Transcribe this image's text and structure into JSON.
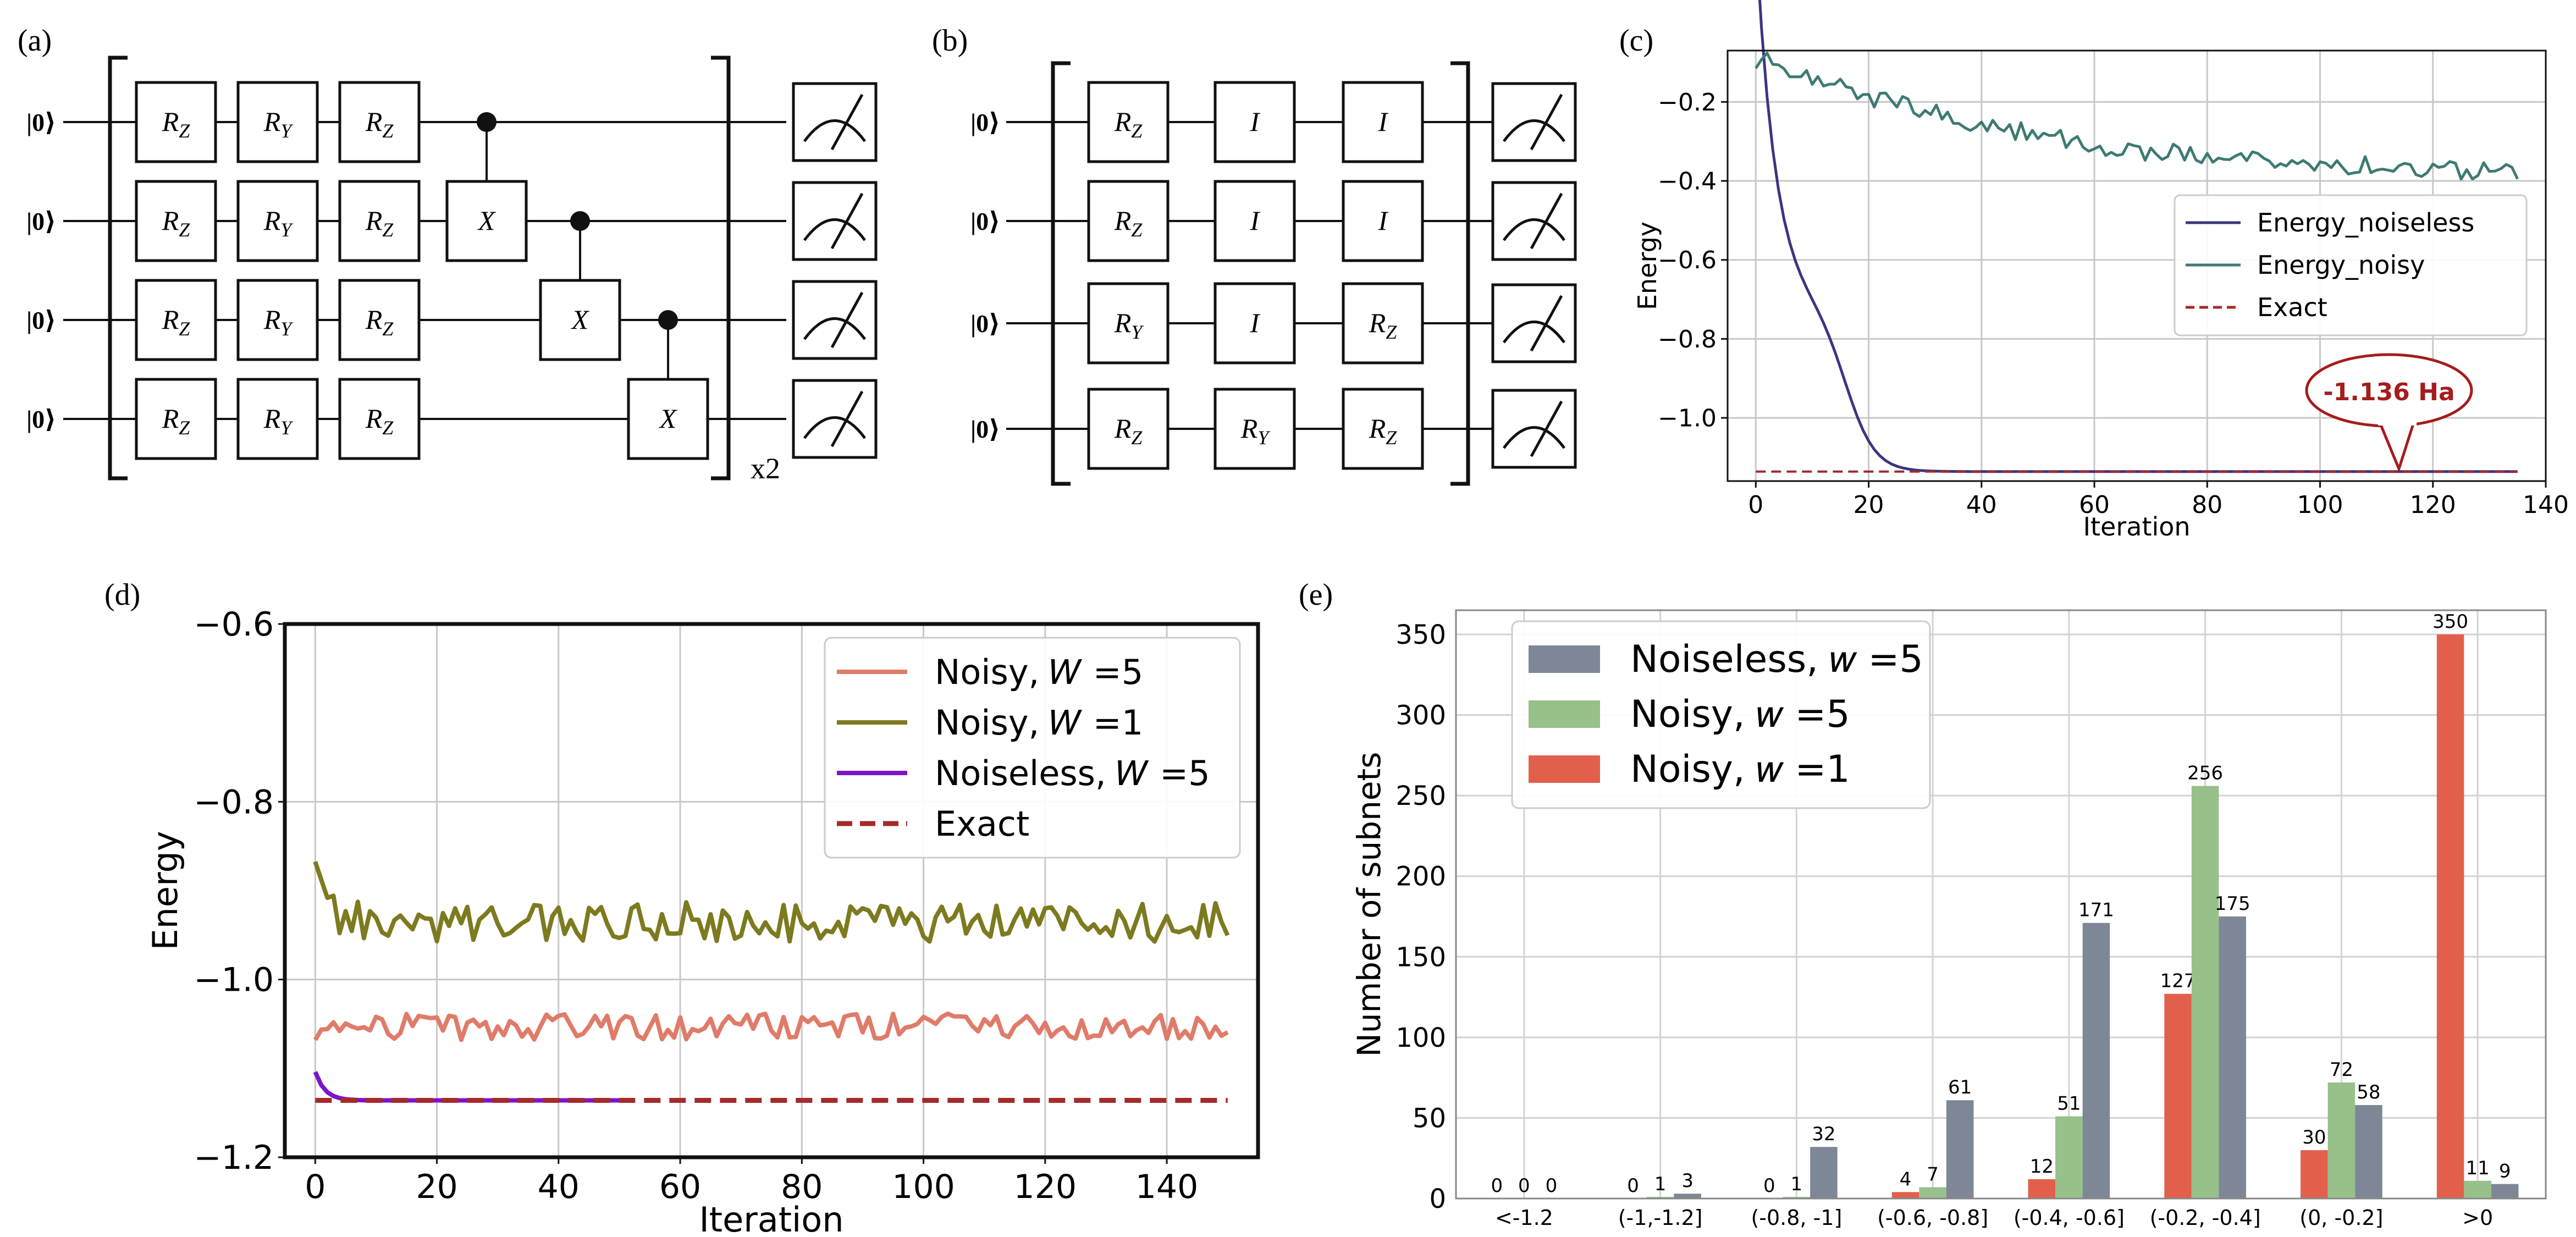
{
  "panel_labels": {
    "a": "(a)",
    "b": "(b)",
    "c": "(c)",
    "d": "(d)",
    "e": "(e)"
  },
  "circuits": {
    "ket": "|0⟩",
    "repeat": "x2",
    "a": {
      "rows": [
        [
          "R",
          "Z",
          "R",
          "Y",
          "R",
          "Z"
        ],
        [
          "R",
          "Z",
          "R",
          "Y",
          "R",
          "Z"
        ],
        [
          "R",
          "Z",
          "R",
          "Y",
          "R",
          "Z"
        ],
        [
          "R",
          "Z",
          "R",
          "Y",
          "R",
          "Z"
        ]
      ],
      "gates": [
        [
          {
            "base": "R",
            "sub": "Z"
          },
          {
            "base": "R",
            "sub": "Y"
          },
          {
            "base": "R",
            "sub": "Z"
          }
        ],
        [
          {
            "base": "R",
            "sub": "Z"
          },
          {
            "base": "R",
            "sub": "Y"
          },
          {
            "base": "R",
            "sub": "Z"
          }
        ],
        [
          {
            "base": "R",
            "sub": "Z"
          },
          {
            "base": "R",
            "sub": "Y"
          },
          {
            "base": "R",
            "sub": "Z"
          }
        ],
        [
          {
            "base": "R",
            "sub": "Z"
          },
          {
            "base": "R",
            "sub": "Y"
          },
          {
            "base": "R",
            "sub": "Z"
          }
        ]
      ],
      "cnot_target": "X"
    },
    "b": {
      "gates": [
        [
          {
            "base": "R",
            "sub": "Z"
          },
          {
            "base": "I",
            "sub": ""
          },
          {
            "base": "I",
            "sub": ""
          }
        ],
        [
          {
            "base": "R",
            "sub": "Z"
          },
          {
            "base": "I",
            "sub": ""
          },
          {
            "base": "I",
            "sub": ""
          }
        ],
        [
          {
            "base": "R",
            "sub": "Y"
          },
          {
            "base": "I",
            "sub": ""
          },
          {
            "base": "R",
            "sub": "Z"
          }
        ],
        [
          {
            "base": "R",
            "sub": "Z"
          },
          {
            "base": "R",
            "sub": "Y"
          },
          {
            "base": "R",
            "sub": "Z"
          }
        ]
      ]
    }
  },
  "chart_data": [
    {
      "id": "c",
      "type": "line",
      "xlabel": "Iteration",
      "ylabel": "Energy",
      "xlim": [
        -5,
        140
      ],
      "ylim": [
        -1.16,
        -0.07
      ],
      "xticks": [
        0,
        20,
        40,
        60,
        80,
        100,
        120,
        140
      ],
      "yticks": [
        -0.2,
        -0.4,
        -0.6,
        -0.8,
        -1.0
      ],
      "ytick_labels": [
        "−0.2",
        "−0.4",
        "−0.6",
        "−0.8",
        "−1.0"
      ],
      "grid": true,
      "legend_position": "center-right",
      "series": [
        {
          "name": "Energy_noiseless",
          "color": "#3b3580",
          "model": "noiseless_c",
          "x_end": 135
        },
        {
          "name": "Energy_noisy",
          "color": "#3d7a73",
          "model": "noisy_c",
          "x_end": 135
        },
        {
          "name": "Exact",
          "color": "#a52a2a",
          "dashed": true,
          "value": -1.136,
          "x_end": 135
        }
      ],
      "annotation": {
        "text": "-1.136 Ha",
        "x": 113,
        "y": -1.136
      }
    },
    {
      "id": "d",
      "type": "line",
      "xlabel": "Iteration",
      "ylabel": "Energy",
      "xlim": [
        -5,
        155
      ],
      "ylim": [
        -1.2,
        -0.6
      ],
      "xticks": [
        0,
        20,
        40,
        60,
        80,
        100,
        120,
        140
      ],
      "yticks": [
        -0.6,
        -0.8,
        -1.0,
        -1.2
      ],
      "ytick_labels": [
        "−0.6",
        "−0.8",
        "−1.0",
        "−1.2"
      ],
      "grid": true,
      "legend_position": "top-right",
      "series": [
        {
          "name": "Noisy,  𝑊 =5",
          "color": "#e07b6a",
          "model": "noisy_w5",
          "x_end": 150
        },
        {
          "name": "Noisy,  𝑊 =1",
          "color": "#7d7a1f",
          "model": "noisy_w1",
          "x_end": 150
        },
        {
          "name": "Noiseless,  𝑊 =5",
          "color": "#7a16c9",
          "model": "noiseless_d",
          "x_end": 50
        },
        {
          "name": "Exact",
          "color": "#a52a2a",
          "dashed": true,
          "value": -1.136,
          "x_end": 150
        }
      ]
    },
    {
      "id": "e",
      "type": "bar",
      "ylabel": "Number of subnets",
      "ylim": [
        0,
        365
      ],
      "yticks": [
        0,
        50,
        100,
        150,
        200,
        250,
        300,
        350
      ],
      "grid": true,
      "legend_position": "top-left",
      "categories": [
        "<-1.2",
        "(-1,-1.2]",
        "(-0.8, -1]",
        "(-0.6, -0.8]",
        "(-0.4, -0.6]",
        "(-0.2, -0.4]",
        "(0, -0.2]",
        ">0"
      ],
      "series": [
        {
          "name": "Noisy, 𝑤 =1",
          "color": "#e2604b",
          "values": [
            0,
            0,
            0,
            4,
            12,
            127,
            30,
            350
          ]
        },
        {
          "name": "Noisy, 𝑤 =5",
          "color": "#97c08a",
          "values": [
            0,
            1,
            1,
            7,
            51,
            256,
            72,
            11
          ]
        },
        {
          "name": "Noiseless, 𝑤 =5",
          "color": "#7d8796",
          "values": [
            0,
            3,
            32,
            61,
            171,
            175,
            58,
            9
          ]
        }
      ],
      "legend_order": [
        2,
        1,
        0
      ]
    }
  ]
}
